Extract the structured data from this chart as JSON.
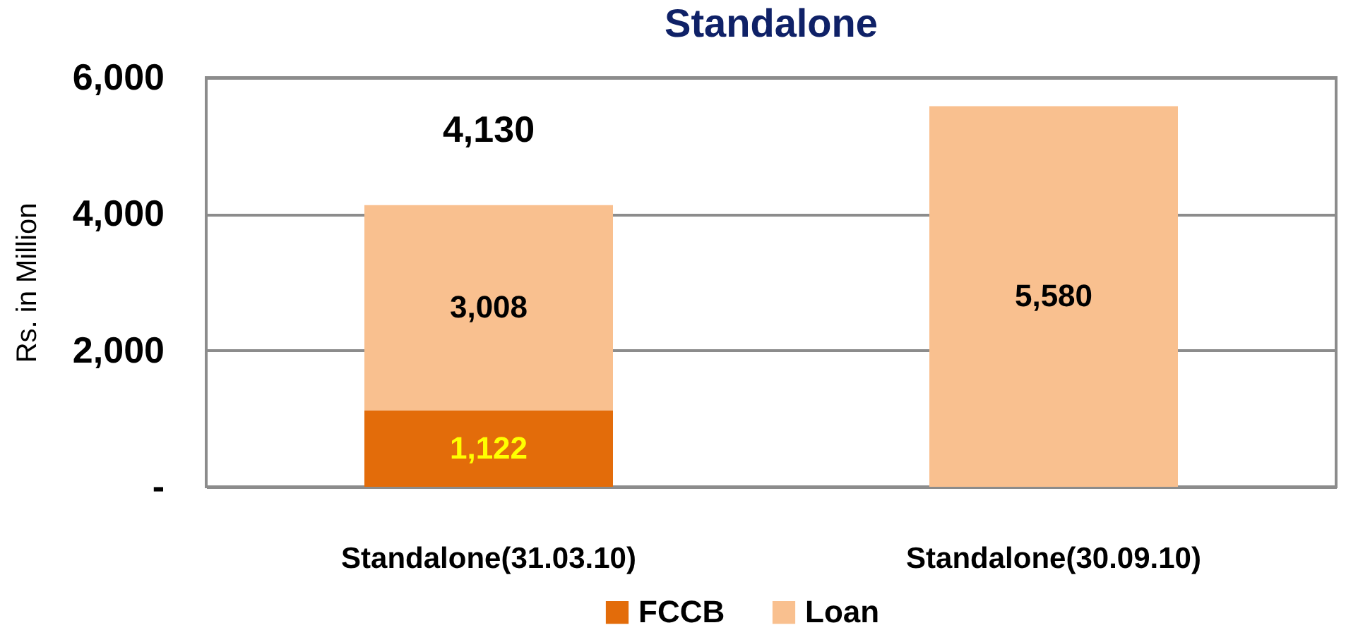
{
  "chart_data": {
    "type": "bar",
    "title": "Standalone",
    "ylabel": "Rs. in Million",
    "categories": [
      "Standalone(31.03.10)",
      "Standalone(30.09.10)"
    ],
    "series": [
      {
        "name": "FCCB",
        "color": "#e36c0a",
        "values": [
          1122,
          null
        ],
        "value_labels": [
          "1,122",
          null
        ]
      },
      {
        "name": "Loan",
        "color": "#f9c08f",
        "values": [
          3008,
          5580
        ],
        "value_labels": [
          "3,008",
          "5,580"
        ]
      }
    ],
    "stacked": true,
    "totals": [
      "4,130",
      null
    ],
    "ylim": [
      0,
      6000
    ],
    "yticks": [
      {
        "value": 0,
        "label": "-"
      },
      {
        "value": 2000,
        "label": "2,000"
      },
      {
        "value": 4000,
        "label": "4,000"
      },
      {
        "value": 6000,
        "label": "6,000"
      }
    ],
    "grid": "y",
    "legend": "bottom"
  }
}
